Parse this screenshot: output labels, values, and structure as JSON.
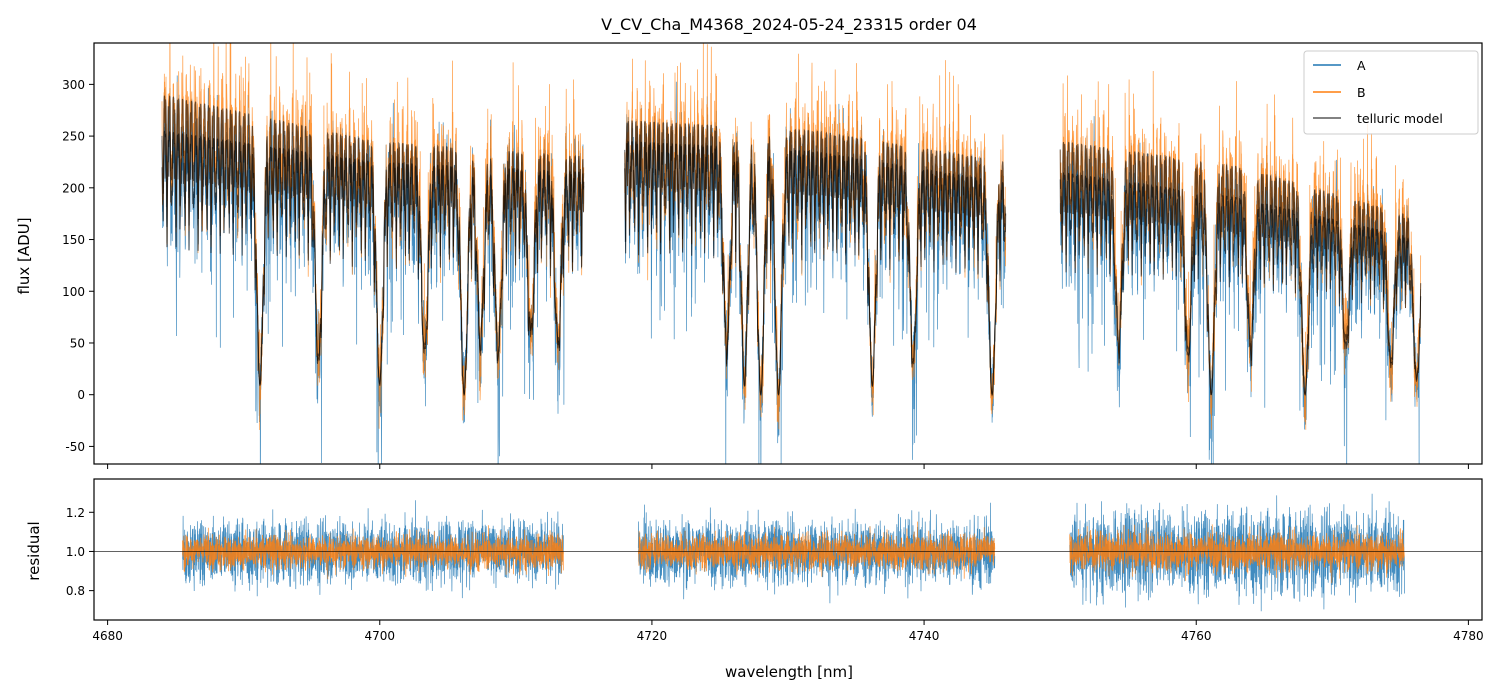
{
  "chart_data": {
    "type": "line",
    "title": "V_CV_Cha_M4368_2024-05-24_23315  order 04",
    "xlabel": "wavelength [nm]",
    "xlim": [
      4679,
      4781
    ],
    "xticks": [
      4680,
      4700,
      4720,
      4740,
      4760,
      4780
    ],
    "xtick_labels": [
      "4680",
      "4700",
      "4720",
      "4740",
      "4760",
      "4780"
    ],
    "colors": {
      "A": "#1f77b4",
      "B": "#ff7f0e",
      "telluric": "#000000"
    },
    "legend": {
      "placement": "top-right",
      "entries": [
        "A",
        "B",
        "telluric model"
      ]
    },
    "panels": [
      {
        "name": "flux",
        "ylabel": "flux [ADU]",
        "ylim": [
          -67,
          340
        ],
        "yticks": [
          -50,
          0,
          50,
          100,
          150,
          200,
          250,
          300
        ],
        "ytick_labels": [
          "-50",
          "0",
          "50",
          "100",
          "150",
          "200",
          "250",
          "300"
        ],
        "segments": [
          {
            "x_start": 4684.0,
            "x_end": 4715.0,
            "continuum_A": [
              255,
              225,
              215
            ],
            "continuum_B": [
              290,
              245,
              230
            ]
          },
          {
            "x_start": 4718.0,
            "x_end": 4746.0,
            "continuum_A": [
              245,
              235,
              205
            ],
            "continuum_B": [
              265,
              255,
              225
            ]
          },
          {
            "x_start": 4750.0,
            "x_end": 4776.5,
            "continuum_A": [
              215,
              190,
              150
            ],
            "continuum_B": [
              245,
              220,
              170
            ]
          }
        ],
        "absorption_lines": [
          {
            "x": 4691.2,
            "depth": 0.95
          },
          {
            "x": 4695.5,
            "depth": 0.85
          },
          {
            "x": 4700.0,
            "depth": 0.95
          },
          {
            "x": 4703.3,
            "depth": 0.8
          },
          {
            "x": 4706.2,
            "depth": 1.0
          },
          {
            "x": 4707.4,
            "depth": 0.75
          },
          {
            "x": 4708.7,
            "depth": 0.8
          },
          {
            "x": 4711.1,
            "depth": 0.7
          },
          {
            "x": 4713.1,
            "depth": 0.75
          },
          {
            "x": 4725.5,
            "depth": 0.8
          },
          {
            "x": 4726.8,
            "depth": 0.95
          },
          {
            "x": 4728.0,
            "depth": 1.0
          },
          {
            "x": 4729.3,
            "depth": 1.0
          },
          {
            "x": 4736.2,
            "depth": 0.95
          },
          {
            "x": 4739.2,
            "depth": 0.85
          },
          {
            "x": 4745.0,
            "depth": 1.0
          },
          {
            "x": 4754.3,
            "depth": 0.75
          },
          {
            "x": 4759.4,
            "depth": 0.8
          },
          {
            "x": 4761.1,
            "depth": 1.0
          },
          {
            "x": 4764.0,
            "depth": 0.75
          },
          {
            "x": 4768.0,
            "depth": 1.0
          },
          {
            "x": 4771.0,
            "depth": 0.7
          },
          {
            "x": 4774.3,
            "depth": 0.8
          },
          {
            "x": 4776.2,
            "depth": 0.9
          }
        ]
      },
      {
        "name": "residual",
        "ylabel": "residual",
        "ylim": [
          0.65,
          1.37
        ],
        "yticks": [
          0.8,
          1.0,
          1.2
        ],
        "ytick_labels": [
          "0.8",
          "1.0",
          "1.2"
        ],
        "reference_line": 1.0,
        "segments": [
          {
            "x_start": 4685.5,
            "x_end": 4713.5,
            "scatter_A": 0.12,
            "scatter_B": 0.07
          },
          {
            "x_start": 4719.0,
            "x_end": 4745.2,
            "scatter_A": 0.13,
            "scatter_B": 0.07
          },
          {
            "x_start": 4750.7,
            "x_end": 4775.3,
            "scatter_A": 0.16,
            "scatter_B": 0.08
          }
        ]
      }
    ]
  }
}
